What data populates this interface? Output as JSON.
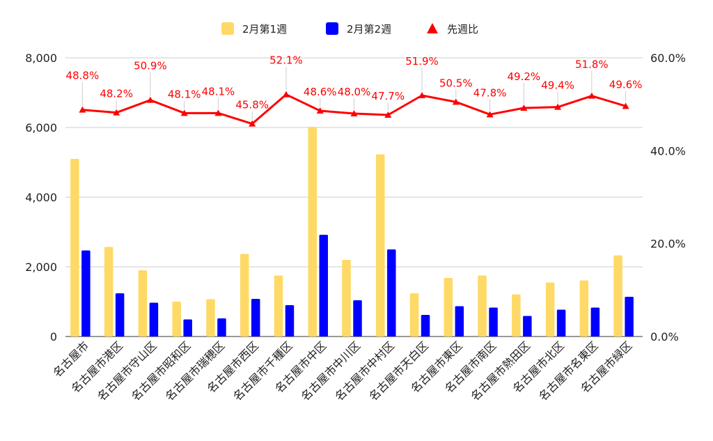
{
  "chart_data": {
    "type": "bar",
    "categories": [
      "名古屋市",
      "名古屋市港区",
      "名古屋市守山区",
      "名古屋市昭和区",
      "名古屋市瑞穂区",
      "名古屋市西区",
      "名古屋市千種区",
      "名古屋市中区",
      "名古屋市中川区",
      "名古屋市中村区",
      "名古屋市天白区",
      "名古屋市東区",
      "名古屋市南区",
      "名古屋市熱田区",
      "名古屋市北区",
      "名古屋市名東区",
      "名古屋市緑区"
    ],
    "series": [
      {
        "name": "2月第1週",
        "type": "bar",
        "axis": "left",
        "color": "#ffd966",
        "values": [
          5100,
          2570,
          1900,
          1000,
          1070,
          2370,
          1750,
          6020,
          2200,
          5230,
          1240,
          1680,
          1750,
          1210,
          1550,
          1610,
          2330
        ]
      },
      {
        "name": "2月第2週",
        "type": "bar",
        "axis": "left",
        "color": "#0000ff",
        "values": [
          2470,
          1240,
          970,
          490,
          520,
          1080,
          900,
          2920,
          1040,
          2500,
          620,
          870,
          830,
          590,
          770,
          830,
          1140
        ]
      },
      {
        "name": "先週比",
        "type": "line",
        "axis": "right",
        "color": "#ff0000",
        "marker": "triangle",
        "values": [
          48.8,
          48.2,
          50.9,
          48.1,
          48.1,
          45.8,
          52.1,
          48.6,
          48.0,
          47.7,
          51.9,
          50.5,
          47.8,
          49.2,
          49.4,
          51.8,
          49.6
        ],
        "labels": [
          "48.8%",
          "48.2%",
          "50.9%",
          "48.1%",
          "48.1%",
          "45.8%",
          "52.1%",
          "48.6%",
          "48.0%",
          "47.7%",
          "51.9%",
          "50.5%",
          "47.8%",
          "49.2%",
          "49.4%",
          "51.8%",
          "49.6%"
        ]
      }
    ],
    "y_left": {
      "min": 0,
      "max": 8000,
      "ticks": [
        0,
        2000,
        4000,
        6000,
        8000
      ],
      "tick_labels": [
        "0",
        "2,000",
        "4,000",
        "6,000",
        "8,000"
      ]
    },
    "y_right": {
      "min": 0,
      "max": 60,
      "ticks": [
        0,
        20,
        40,
        60
      ],
      "tick_labels": [
        "0.0%",
        "20.0%",
        "40.0%",
        "60.0%"
      ]
    },
    "grid": true,
    "legend_position": "top-center"
  }
}
